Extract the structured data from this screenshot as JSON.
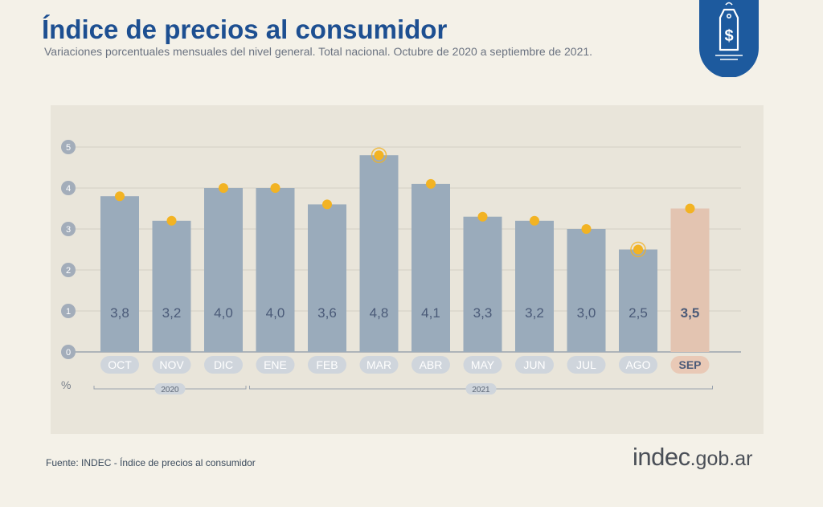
{
  "header": {
    "title": "Índice de precios al consumidor",
    "subtitle": "Variaciones porcentuales mensuales del nivel general. Total nacional. Octubre de 2020 a septiembre de 2021."
  },
  "footer": {
    "source": "Fuente: INDEC - Índice de precios al consumidor",
    "brand_main": "indec",
    "brand_suffix": ".gob.ar"
  },
  "badge": {
    "icon": "price-tag-dollar-icon",
    "color": "#1d5a9e"
  },
  "chart_data": {
    "type": "bar",
    "title": "Índice de precios al consumidor",
    "ylabel": "%",
    "ylim": [
      0,
      5
    ],
    "yticks": [
      0,
      1,
      2,
      3,
      4,
      5
    ],
    "grid": true,
    "categories": [
      "OCT",
      "NOV",
      "DIC",
      "ENE",
      "FEB",
      "MAR",
      "ABR",
      "MAY",
      "JUN",
      "JUL",
      "AGO",
      "SEP"
    ],
    "values": [
      3.8,
      3.2,
      4.0,
      4.0,
      3.6,
      4.8,
      4.1,
      3.3,
      3.2,
      3.0,
      2.5,
      3.5
    ],
    "value_labels": [
      "3,8",
      "3,2",
      "4,0",
      "4,0",
      "3,6",
      "4,8",
      "4,1",
      "3,3",
      "3,2",
      "3,0",
      "2,5",
      "3,5"
    ],
    "highlighted_points": [
      "MAR",
      "AGO"
    ],
    "highlighted_category": "SEP",
    "year_groups": [
      {
        "label": "2020",
        "from": "OCT",
        "to": "DIC"
      },
      {
        "label": "2021",
        "from": "ENE",
        "to": "SEP"
      }
    ],
    "colors": {
      "bar": "#9aabbb",
      "bar_highlight": "#e3c4b1",
      "marker": "#f2b323",
      "label": "#4a5a78",
      "axis_circle": "#a3adba",
      "category_pill": "#cfd5dc",
      "category_pill_highlight": "#e9c9b6"
    }
  }
}
